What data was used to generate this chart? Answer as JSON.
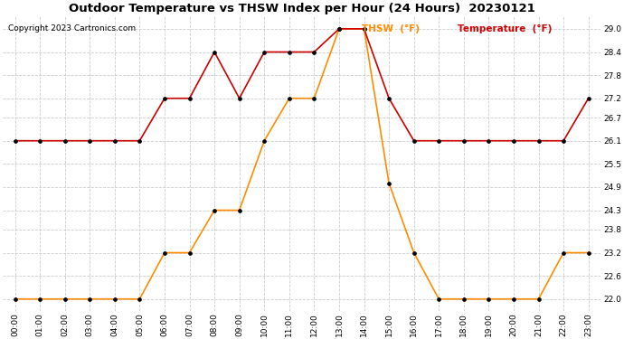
{
  "title": "Outdoor Temperature vs THSW Index per Hour (24 Hours)  20230121",
  "copyright": "Copyright 2023 Cartronics.com",
  "legend_thsw": "THSW  (°F)",
  "legend_temp": "Temperature  (°F)",
  "hours": [
    "00:00",
    "01:00",
    "02:00",
    "03:00",
    "04:00",
    "05:00",
    "06:00",
    "07:00",
    "08:00",
    "09:00",
    "10:00",
    "11:00",
    "12:00",
    "13:00",
    "14:00",
    "15:00",
    "16:00",
    "17:00",
    "18:00",
    "19:00",
    "20:00",
    "21:00",
    "22:00",
    "23:00"
  ],
  "thsw": [
    22.0,
    22.0,
    22.0,
    22.0,
    22.0,
    22.0,
    23.2,
    23.2,
    24.3,
    24.3,
    26.1,
    27.2,
    27.2,
    29.0,
    29.0,
    25.0,
    23.2,
    22.0,
    22.0,
    22.0,
    22.0,
    22.0,
    23.2,
    23.2
  ],
  "temperature": [
    26.1,
    26.1,
    26.1,
    26.1,
    26.1,
    26.1,
    27.2,
    27.2,
    28.4,
    27.2,
    28.4,
    28.4,
    28.4,
    29.0,
    29.0,
    27.2,
    26.1,
    26.1,
    26.1,
    26.1,
    26.1,
    26.1,
    26.1,
    27.2
  ],
  "thsw_color": "#FF8C00",
  "temp_color": "#CC0000",
  "marker_color": "#000000",
  "bg_color": "#FFFFFF",
  "grid_color": "#CCCCCC",
  "ylim_min": 21.7,
  "ylim_max": 29.35,
  "yticks": [
    22.0,
    22.6,
    23.2,
    23.8,
    24.3,
    24.9,
    25.5,
    26.1,
    26.7,
    27.2,
    27.8,
    28.4,
    29.0
  ],
  "title_fontsize": 9.5,
  "copyright_fontsize": 6.5,
  "legend_fontsize": 7.5,
  "tick_fontsize": 6.5,
  "title_color": "#000000",
  "copyright_color": "#000000"
}
